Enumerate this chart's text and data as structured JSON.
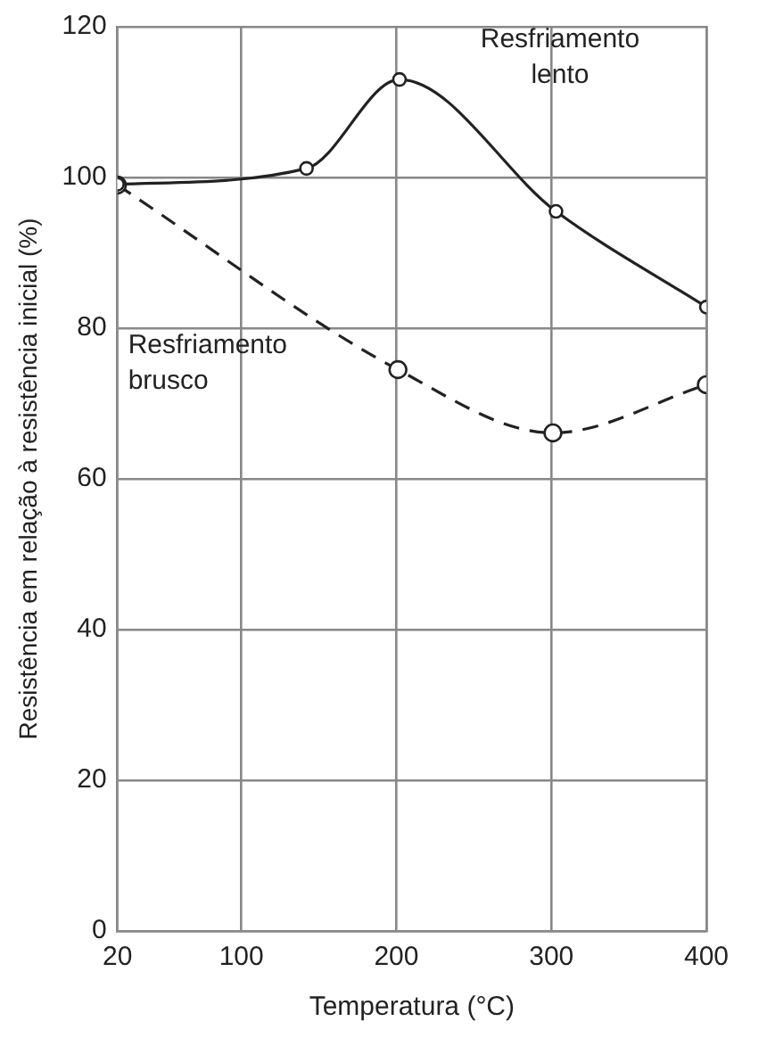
{
  "chart_data": {
    "type": "line",
    "xlabel": "Temperatura (°C)",
    "ylabel": "Resistência em relação à resistência inicial (%)",
    "xlim": [
      20,
      400
    ],
    "xticks": [
      20,
      100,
      200,
      300,
      400
    ],
    "ylim": [
      0,
      120
    ],
    "yticks": [
      0,
      20,
      40,
      60,
      80,
      100,
      120
    ],
    "grid": true,
    "legend": false,
    "marker": "circle",
    "series": [
      {
        "name": "Resfriamento lento",
        "color": "#222222",
        "line_style": "solid",
        "x": [
          20,
          142,
          202,
          303,
          400
        ],
        "values": [
          99.1,
          101.2,
          113,
          95.5,
          82.8
        ]
      },
      {
        "name": "Resfriamento brusco",
        "color": "#222222",
        "line_style": "dashed",
        "x": [
          20,
          201,
          301,
          400
        ],
        "values": [
          99,
          74.5,
          66.1,
          72.5
        ]
      }
    ]
  }
}
